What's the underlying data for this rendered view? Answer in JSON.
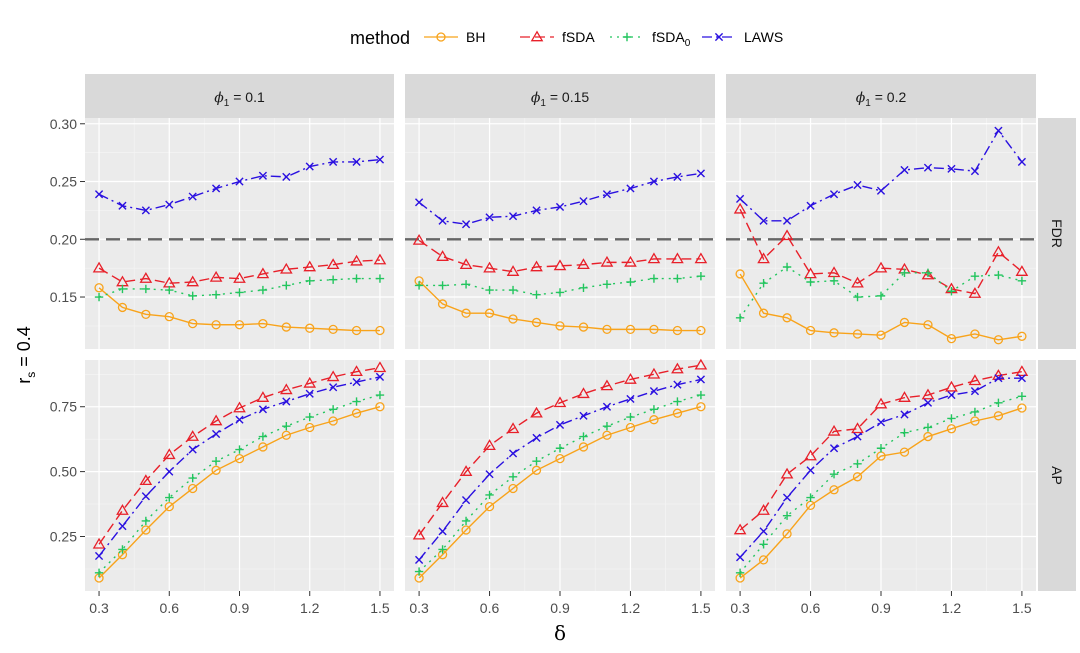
{
  "chart_data": {
    "type": "line",
    "x": [
      0.3,
      0.4,
      0.5,
      0.6,
      0.7,
      0.8,
      0.9,
      1.0,
      1.1,
      1.2,
      1.3,
      1.4,
      1.5
    ],
    "xlabel": "δ",
    "ylabel_main": "r",
    "ylabel_sub": "s",
    "ylabel_value": " = 0.4",
    "xticks": [
      0.3,
      0.6,
      0.9,
      1.2,
      1.5
    ],
    "xtick_labels": [
      "0.3",
      "0.6",
      "0.9",
      "1.2",
      "1.5"
    ],
    "xlim": [
      0.24,
      1.56
    ],
    "legend": {
      "title": "method",
      "entries": [
        {
          "key": "BH",
          "main": "BH",
          "sub": ""
        },
        {
          "key": "fSDA",
          "main": "fSDA",
          "sub": ""
        },
        {
          "key": "fSDA0",
          "main": "fSDA",
          "sub": "0"
        },
        {
          "key": "LAWS",
          "main": "LAWS",
          "sub": ""
        }
      ]
    },
    "columns": [
      {
        "greek": "ϕ",
        "sub": "1",
        "value": " = 0.1"
      },
      {
        "greek": "ϕ",
        "sub": "1",
        "value": " = 0.15"
      },
      {
        "greek": "ϕ",
        "sub": "1",
        "value": " = 0.2"
      }
    ],
    "rows": [
      {
        "label": "FDR",
        "ylim": [
          0.105,
          0.305
        ],
        "yticks": [
          0.15,
          0.2,
          0.25,
          0.3
        ],
        "ytick_labels": [
          "0.15",
          "0.20",
          "0.25",
          "0.30"
        ],
        "reference_line": 0.2
      },
      {
        "label": "AP",
        "ylim": [
          0.04,
          0.93
        ],
        "yticks": [
          0.25,
          0.5,
          0.75
        ],
        "ytick_labels": [
          "0.25",
          "0.50",
          "0.75"
        ]
      }
    ],
    "series_styles": {
      "BH": {
        "color": "#F8A31B",
        "dash": "",
        "marker": "circle"
      },
      "fSDA": {
        "color": "#E8202A",
        "dash": "10,5",
        "marker": "triangle"
      },
      "fSDA0": {
        "color": "#22C55E",
        "dash": "2,5",
        "marker": "plus"
      },
      "LAWS": {
        "color": "#2A10E0",
        "dash": "10,4,2,4",
        "marker": "x"
      }
    },
    "panels": [
      {
        "row": 0,
        "col": 0,
        "series": {
          "BH": [
            0.158,
            0.141,
            0.135,
            0.133,
            0.127,
            0.126,
            0.126,
            0.127,
            0.124,
            0.123,
            0.122,
            0.121,
            0.121
          ],
          "fSDA": [
            0.175,
            0.163,
            0.166,
            0.162,
            0.163,
            0.167,
            0.166,
            0.17,
            0.174,
            0.176,
            0.178,
            0.181,
            0.182
          ],
          "fSDA0": [
            0.15,
            0.157,
            0.157,
            0.156,
            0.151,
            0.152,
            0.154,
            0.156,
            0.16,
            0.164,
            0.165,
            0.166,
            0.166
          ],
          "LAWS": [
            0.239,
            0.229,
            0.225,
            0.23,
            0.237,
            0.244,
            0.25,
            0.255,
            0.254,
            0.263,
            0.267,
            0.267,
            0.269
          ]
        }
      },
      {
        "row": 0,
        "col": 1,
        "series": {
          "BH": [
            0.164,
            0.144,
            0.136,
            0.136,
            0.131,
            0.128,
            0.125,
            0.124,
            0.122,
            0.122,
            0.122,
            0.121,
            0.121
          ],
          "fSDA": [
            0.199,
            0.185,
            0.178,
            0.175,
            0.172,
            0.176,
            0.177,
            0.178,
            0.18,
            0.18,
            0.183,
            0.183,
            0.183
          ],
          "fSDA0": [
            0.16,
            0.16,
            0.161,
            0.156,
            0.156,
            0.152,
            0.154,
            0.158,
            0.161,
            0.163,
            0.166,
            0.166,
            0.168
          ],
          "LAWS": [
            0.232,
            0.216,
            0.213,
            0.219,
            0.22,
            0.225,
            0.228,
            0.233,
            0.239,
            0.244,
            0.25,
            0.254,
            0.257
          ]
        }
      },
      {
        "row": 0,
        "col": 2,
        "series": {
          "BH": [
            0.17,
            0.136,
            0.132,
            0.121,
            0.119,
            0.118,
            0.117,
            0.128,
            0.126,
            0.114,
            0.118,
            0.113,
            0.116
          ],
          "fSDA": [
            0.226,
            0.183,
            0.203,
            0.17,
            0.171,
            0.162,
            0.175,
            0.174,
            0.169,
            0.157,
            0.153,
            0.189,
            0.172
          ],
          "fSDA0": [
            0.132,
            0.162,
            0.176,
            0.163,
            0.164,
            0.15,
            0.151,
            0.171,
            0.171,
            0.155,
            0.168,
            0.169,
            0.164
          ],
          "LAWS": [
            0.235,
            0.216,
            0.216,
            0.229,
            0.239,
            0.247,
            0.242,
            0.26,
            0.262,
            0.261,
            0.259,
            0.294,
            0.267
          ]
        }
      },
      {
        "row": 1,
        "col": 0,
        "series": {
          "BH": [
            0.09,
            0.18,
            0.275,
            0.365,
            0.435,
            0.505,
            0.55,
            0.595,
            0.64,
            0.67,
            0.695,
            0.725,
            0.75
          ],
          "fSDA": [
            0.22,
            0.35,
            0.465,
            0.565,
            0.635,
            0.695,
            0.745,
            0.785,
            0.815,
            0.84,
            0.865,
            0.885,
            0.9
          ],
          "fSDA0": [
            0.11,
            0.2,
            0.31,
            0.4,
            0.475,
            0.54,
            0.585,
            0.635,
            0.675,
            0.71,
            0.74,
            0.77,
            0.795
          ],
          "LAWS": [
            0.175,
            0.29,
            0.405,
            0.5,
            0.585,
            0.645,
            0.7,
            0.74,
            0.77,
            0.8,
            0.825,
            0.845,
            0.865
          ]
        }
      },
      {
        "row": 1,
        "col": 1,
        "series": {
          "BH": [
            0.09,
            0.18,
            0.275,
            0.365,
            0.435,
            0.505,
            0.55,
            0.595,
            0.64,
            0.67,
            0.7,
            0.725,
            0.75
          ],
          "fSDA": [
            0.255,
            0.38,
            0.5,
            0.6,
            0.665,
            0.725,
            0.765,
            0.8,
            0.83,
            0.855,
            0.875,
            0.895,
            0.91
          ],
          "fSDA0": [
            0.115,
            0.2,
            0.31,
            0.41,
            0.48,
            0.54,
            0.59,
            0.635,
            0.675,
            0.71,
            0.74,
            0.77,
            0.795
          ],
          "LAWS": [
            0.16,
            0.27,
            0.39,
            0.49,
            0.57,
            0.63,
            0.68,
            0.715,
            0.75,
            0.78,
            0.81,
            0.835,
            0.855
          ]
        }
      },
      {
        "row": 1,
        "col": 2,
        "series": {
          "BH": [
            0.09,
            0.16,
            0.26,
            0.37,
            0.43,
            0.48,
            0.56,
            0.575,
            0.635,
            0.665,
            0.695,
            0.715,
            0.745
          ],
          "fSDA": [
            0.275,
            0.35,
            0.49,
            0.56,
            0.655,
            0.665,
            0.76,
            0.785,
            0.795,
            0.825,
            0.85,
            0.87,
            0.885
          ],
          "fSDA0": [
            0.11,
            0.22,
            0.33,
            0.4,
            0.49,
            0.53,
            0.59,
            0.65,
            0.67,
            0.705,
            0.73,
            0.765,
            0.79
          ],
          "LAWS": [
            0.17,
            0.27,
            0.4,
            0.505,
            0.59,
            0.635,
            0.69,
            0.72,
            0.765,
            0.795,
            0.81,
            0.86,
            0.86
          ]
        }
      }
    ]
  }
}
